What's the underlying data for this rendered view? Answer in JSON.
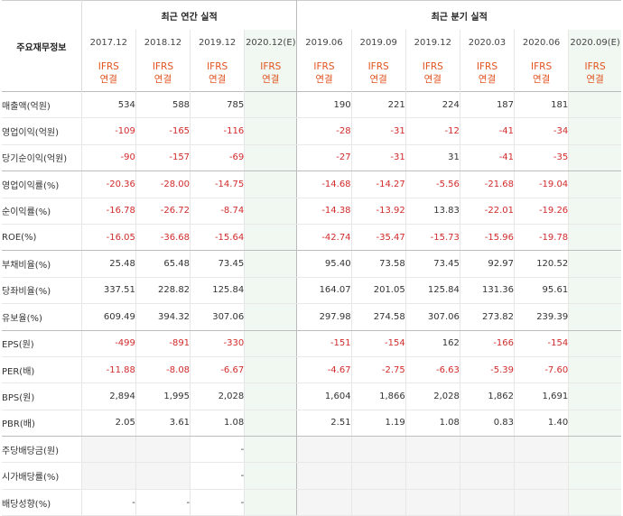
{
  "header": {
    "corner_label": "주요재무정보",
    "annual_group": "최근 연간 실적",
    "quarter_group": "최근 분기 실적",
    "top_mark": "˅"
  },
  "periods": [
    {
      "label": "2017.12",
      "ifrs": [
        "IFRS",
        "연결"
      ],
      "estimate": false,
      "group": "annual"
    },
    {
      "label": "2018.12",
      "ifrs": [
        "IFRS",
        "연결"
      ],
      "estimate": false,
      "group": "annual"
    },
    {
      "label": "2019.12",
      "ifrs": [
        "IFRS",
        "연결"
      ],
      "estimate": false,
      "group": "annual"
    },
    {
      "label": "2020.12(E)",
      "ifrs": [
        "IFRS",
        "연결"
      ],
      "estimate": true,
      "group": "annual"
    },
    {
      "label": "2019.06",
      "ifrs": [
        "IFRS",
        "연결"
      ],
      "estimate": false,
      "group": "quarter"
    },
    {
      "label": "2019.09",
      "ifrs": [
        "IFRS",
        "연결"
      ],
      "estimate": false,
      "group": "quarter"
    },
    {
      "label": "2019.12",
      "ifrs": [
        "IFRS",
        "연결"
      ],
      "estimate": false,
      "group": "quarter"
    },
    {
      "label": "2020.03",
      "ifrs": [
        "IFRS",
        "연결"
      ],
      "estimate": false,
      "group": "quarter"
    },
    {
      "label": "2020.06",
      "ifrs": [
        "IFRS",
        "연결"
      ],
      "estimate": false,
      "group": "quarter"
    },
    {
      "label": "2020.09(E)",
      "ifrs": [
        "IFRS",
        "연결"
      ],
      "estimate": true,
      "group": "quarter"
    }
  ],
  "rows": [
    {
      "label": "매출액(억원)",
      "values": [
        "534",
        "588",
        "785",
        "",
        "190",
        "221",
        "224",
        "187",
        "181",
        ""
      ]
    },
    {
      "label": "영업이익(억원)",
      "values": [
        "-109",
        "-165",
        "-116",
        "",
        "-28",
        "-31",
        "-12",
        "-41",
        "-34",
        ""
      ]
    },
    {
      "label": "당기순이익(억원)",
      "section_end": true,
      "values": [
        "-90",
        "-157",
        "-69",
        "",
        "-27",
        "-31",
        "31",
        "-41",
        "-35",
        ""
      ]
    },
    {
      "label": "영업이익률(%)",
      "values": [
        "-20.36",
        "-28.00",
        "-14.75",
        "",
        "-14.68",
        "-14.27",
        "-5.56",
        "-21.68",
        "-19.04",
        ""
      ]
    },
    {
      "label": "순이익률(%)",
      "values": [
        "-16.78",
        "-26.72",
        "-8.74",
        "",
        "-14.38",
        "-13.92",
        "13.83",
        "-22.01",
        "-19.26",
        ""
      ]
    },
    {
      "label": "ROE(%)",
      "section_end": true,
      "values": [
        "-16.05",
        "-36.68",
        "-15.64",
        "",
        "-42.74",
        "-35.47",
        "-15.73",
        "-15.96",
        "-19.78",
        ""
      ]
    },
    {
      "label": "부채비율(%)",
      "values": [
        "25.48",
        "65.48",
        "73.45",
        "",
        "95.40",
        "73.58",
        "73.45",
        "92.97",
        "120.52",
        ""
      ]
    },
    {
      "label": "당좌비율(%)",
      "values": [
        "337.51",
        "228.82",
        "125.84",
        "",
        "164.07",
        "201.05",
        "125.84",
        "131.36",
        "95.61",
        ""
      ]
    },
    {
      "label": "유보율(%)",
      "section_end": true,
      "values": [
        "609.49",
        "394.32",
        "307.06",
        "",
        "297.98",
        "274.58",
        "307.06",
        "273.82",
        "239.39",
        ""
      ]
    },
    {
      "label": "EPS(원)",
      "values": [
        "-499",
        "-891",
        "-330",
        "",
        "-151",
        "-154",
        "162",
        "-166",
        "-154",
        ""
      ]
    },
    {
      "label": "PER(배)",
      "values": [
        "-11.88",
        "-8.08",
        "-6.67",
        "",
        "-4.67",
        "-2.75",
        "-6.63",
        "-5.39",
        "-7.60",
        ""
      ]
    },
    {
      "label": "BPS(원)",
      "values": [
        "2,894",
        "1,995",
        "2,028",
        "",
        "1,604",
        "1,866",
        "2,028",
        "1,862",
        "1,691",
        ""
      ]
    },
    {
      "label": "PBR(배)",
      "section_end": true,
      "values": [
        "2.05",
        "3.61",
        "1.08",
        "",
        "2.51",
        "1.19",
        "1.08",
        "0.83",
        "1.40",
        ""
      ]
    },
    {
      "label": "주당배당금(원)",
      "values": [
        "",
        "",
        "-",
        "",
        "",
        "",
        "",
        "",
        "",
        ""
      ]
    },
    {
      "label": "시가배당률(%)",
      "values": [
        "",
        "",
        "-",
        "",
        "",
        "",
        "",
        "",
        "",
        ""
      ]
    },
    {
      "label": "배당성향(%)",
      "values": [
        "-",
        "-",
        "-",
        "",
        "",
        "",
        "",
        "",
        "",
        ""
      ]
    }
  ]
}
